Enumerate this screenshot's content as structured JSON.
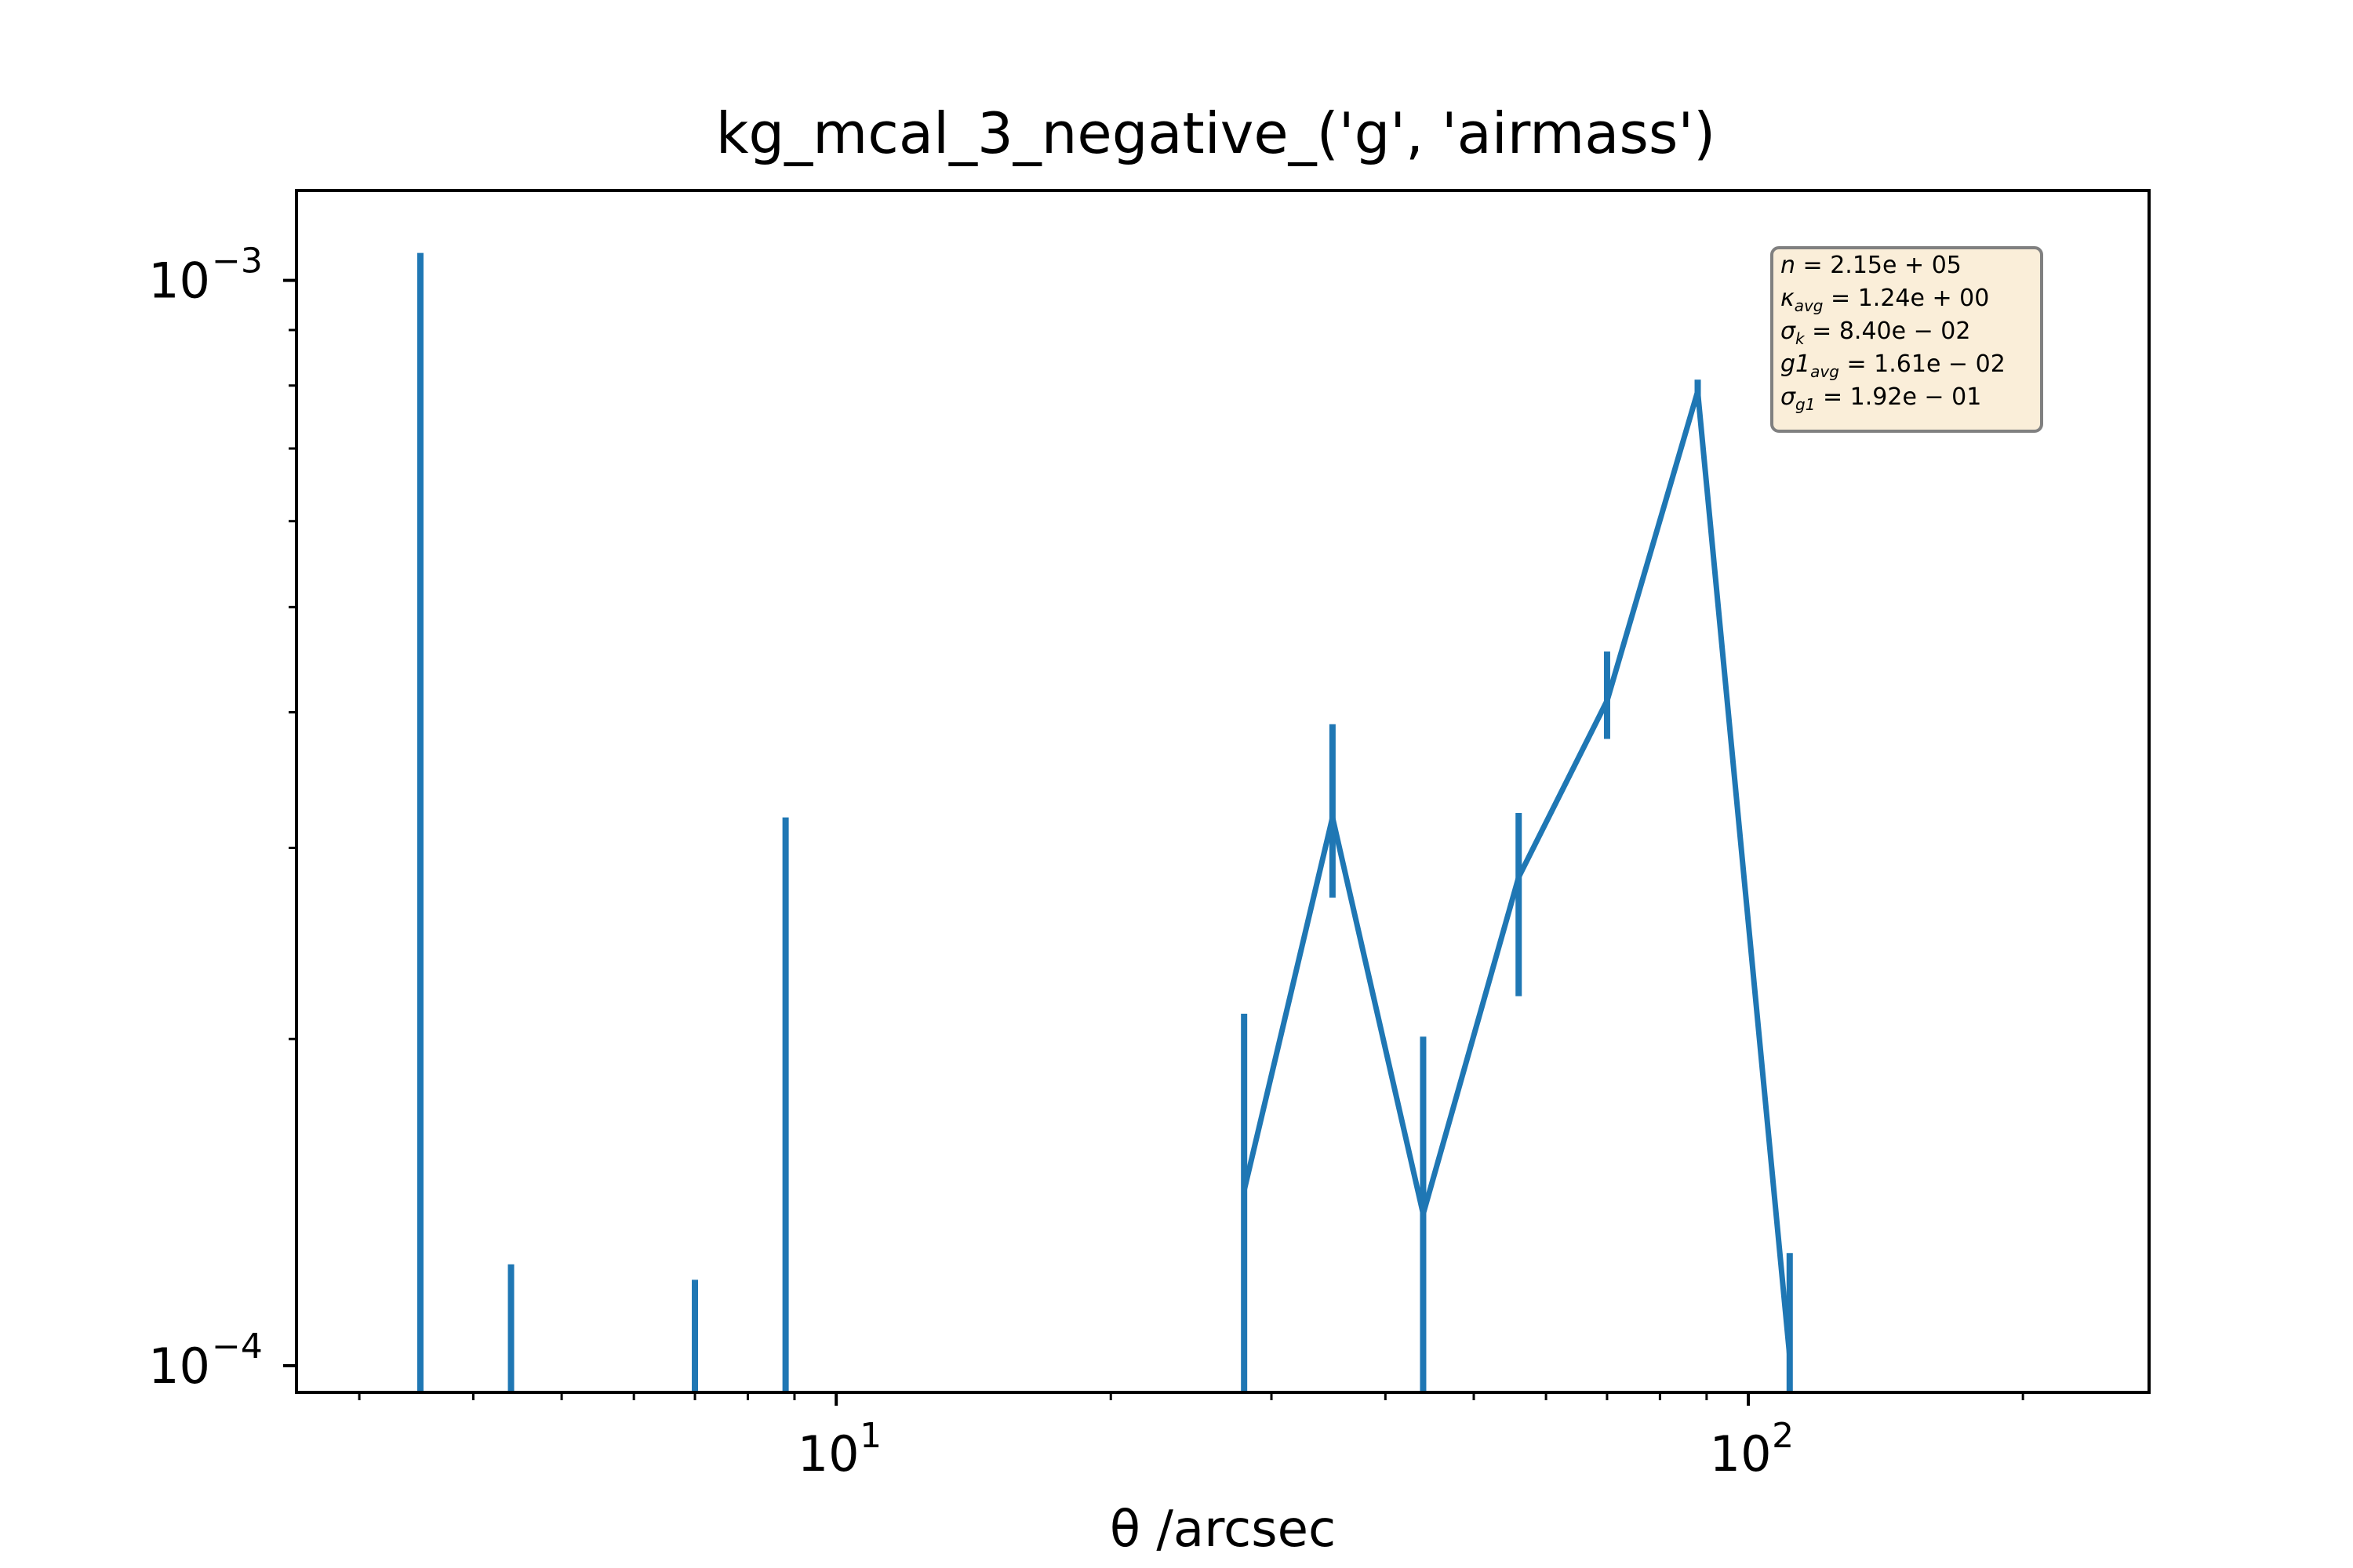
{
  "chart_data": {
    "type": "line",
    "title": "kg_mcal_3_negative_('g', 'airmass')",
    "xlabel": "θ /arcsec",
    "ylabel": "",
    "xscale": "log",
    "yscale": "log",
    "xlim": [
      2.56,
      275
    ],
    "ylim": [
      9.45e-05,
      0.00121
    ],
    "x_ticks": [
      {
        "value": 10,
        "base": "10",
        "exp": "1"
      },
      {
        "value": 100,
        "base": "10",
        "exp": "2"
      }
    ],
    "y_ticks": [
      {
        "value": 0.0001,
        "base": "10",
        "exp": "−4"
      },
      {
        "value": 0.001,
        "base": "10",
        "exp": "−3"
      }
    ],
    "color": "#1f77b4",
    "grid": false,
    "legend": "none",
    "stats_box": {
      "position": "top-right",
      "lines": [
        {
          "sym": "n",
          "sub": "",
          "val": " = 2.15e + 05"
        },
        {
          "sym": "κ",
          "sub": "avg",
          "val": " = 1.24e + 00"
        },
        {
          "sym": "σ",
          "sub": "k",
          "val": " = 8.40e − 02"
        },
        {
          "sym": "g1",
          "sub": "avg",
          "val": " = 1.61e − 02"
        },
        {
          "sym": "σ",
          "sub": "g1",
          "val": " = 1.92e − 01"
        }
      ]
    },
    "series": [
      {
        "points": [
          {
            "x": 3.5,
            "y": null,
            "ylo": 9.45e-05,
            "yhi": 0.00106
          },
          {
            "x": 4.4,
            "y": null,
            "ylo": 9.45e-05,
            "yhi": 0.000124
          },
          {
            "x": 7.0,
            "y": null,
            "ylo": 9.45e-05,
            "yhi": 0.00012
          },
          {
            "x": 8.8,
            "y": null,
            "ylo": 9.45e-05,
            "yhi": 0.00032
          },
          {
            "x": 28.0,
            "y": 0.000145,
            "ylo": 9.45e-05,
            "yhi": 0.000211
          },
          {
            "x": 35.0,
            "y": 0.00032,
            "ylo": 0.00027,
            "yhi": 0.00039
          },
          {
            "x": 44.0,
            "y": 0.000138,
            "ylo": 9.45e-05,
            "yhi": 0.000201
          },
          {
            "x": 56.0,
            "y": 0.000282,
            "ylo": 0.000219,
            "yhi": 0.000323
          },
          {
            "x": 70.0,
            "y": 0.00041,
            "ylo": 0.000378,
            "yhi": 0.000455
          },
          {
            "x": 88.0,
            "y": 0.00079,
            "ylo": 0.000765,
            "yhi": 0.00081
          },
          {
            "x": 111.0,
            "y": 0.000102,
            "ylo": 9.45e-05,
            "yhi": 0.000127
          }
        ]
      }
    ]
  }
}
